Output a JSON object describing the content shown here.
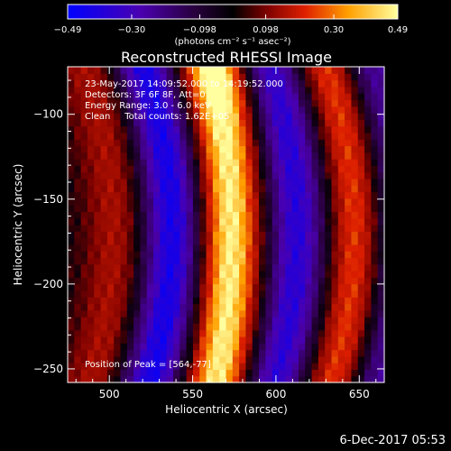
{
  "chart_data": {
    "type": "heatmap",
    "title": "Reconstructed RHESSI Image",
    "xlabel": "Heliocentric X (arcsec)",
    "ylabel": "Heliocentric Y (arcsec)",
    "xlim": [
      475,
      665
    ],
    "ylim": [
      -258,
      -72
    ],
    "xticks": [
      500,
      550,
      600,
      650
    ],
    "yticks": [
      -100,
      -150,
      -200,
      -250
    ],
    "colorbar": {
      "min": -0.49,
      "max": 0.49,
      "tick_values": [
        -0.49,
        -0.3,
        -0.098,
        0.098,
        0.3,
        0.49
      ],
      "tick_labels": [
        "-0.49",
        "-0.30",
        "-0.098",
        "0.098",
        "0.30",
        "0.49"
      ],
      "unit_label": "(photons cm⁻² s⁻¹ asec⁻²)"
    },
    "annotations": [
      "23-May-2017 14:09:52.000 to 14:19:52.000",
      "Detectors: 3F 6F 8F, Att=0",
      "Energy Range: 3.0 - 6.0 keV",
      "Clean     Total counts: 1.62E+05"
    ],
    "peak_label": "Position of Peak = [564,-77]",
    "peak": [
      564,
      -77
    ],
    "field": {
      "description_free": true,
      "stripes": [
        {
          "x_center_at_y_min": 520,
          "curvature": 0.0,
          "amplitude": 0.05
        },
        {
          "x_center": 488,
          "amplitude": 0.18
        },
        {
          "x_center": 522,
          "amplitude": -0.45
        },
        {
          "x_center": 563,
          "amplitude": 0.49
        },
        {
          "x_center": 597,
          "amplitude": -0.4
        },
        {
          "x_center": 633,
          "amplitude": 0.32
        },
        {
          "x_center": 657,
          "amplitude": -0.3
        }
      ]
    }
  },
  "footer": {
    "timestamp": "6-Dec-2017 05:53"
  }
}
